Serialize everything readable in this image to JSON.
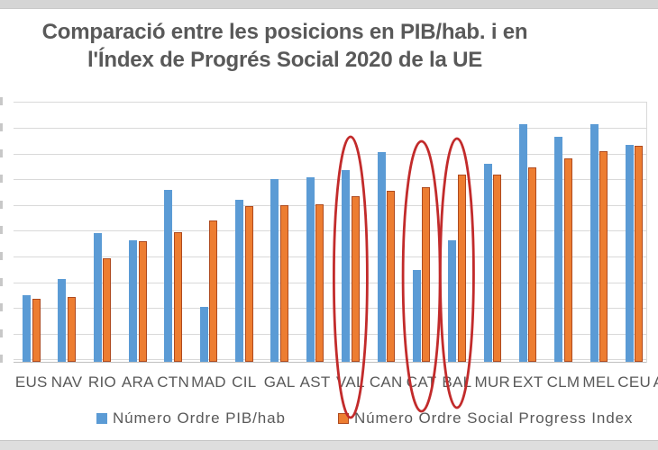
{
  "chart_data": {
    "type": "bar",
    "title": "Comparació entre les posicions en PIB/hab. i en l'Índex de Progrés Social 2020 de la UE",
    "title_lines": [
      "Comparació entre les posicions en PIB/hab. i en",
      "l'Índex de Progrés Social 2020 de la UE"
    ],
    "categories": [
      "EUS",
      "NAV",
      "RIO",
      "ARA",
      "CTN",
      "MAD",
      "CIL",
      "GAL",
      "AST",
      "VAL",
      "CAN",
      "CAT",
      "BAL",
      "MUR",
      "EXT",
      "CLM",
      "MEL",
      "CEU",
      "AND"
    ],
    "series": [
      {
        "name": "Número Ordre PIB/hab",
        "color": "#5B9BD5",
        "values": [
          52,
          65,
          100,
          95,
          134,
          43,
          126,
          142,
          144,
          149,
          163,
          72,
          95,
          154,
          185,
          175,
          185,
          169,
          null
        ]
      },
      {
        "name": "Número Ordre Social Progress Index",
        "color": "#ED7D31",
        "border_color": "#AE4A1F",
        "values": [
          49,
          51,
          81,
          94,
          101,
          110,
          121,
          122,
          123,
          129,
          133,
          136,
          146,
          146,
          151,
          158,
          164,
          168,
          null
        ]
      }
    ],
    "axis": {
      "ymin": 0,
      "ymax": 200,
      "grid_step": 20,
      "grid": true,
      "y_tick_labels_visible": false,
      "note_last_category_cropped": "AND label partially visible at right edge"
    },
    "legend_position": "bottom",
    "annotation_color": "#C22B2B",
    "annotations": [
      {
        "shape": "ellipse",
        "target": "VAL"
      },
      {
        "shape": "ellipse",
        "target": "CAT"
      },
      {
        "shape": "ellipse",
        "target": "BAL"
      }
    ]
  }
}
